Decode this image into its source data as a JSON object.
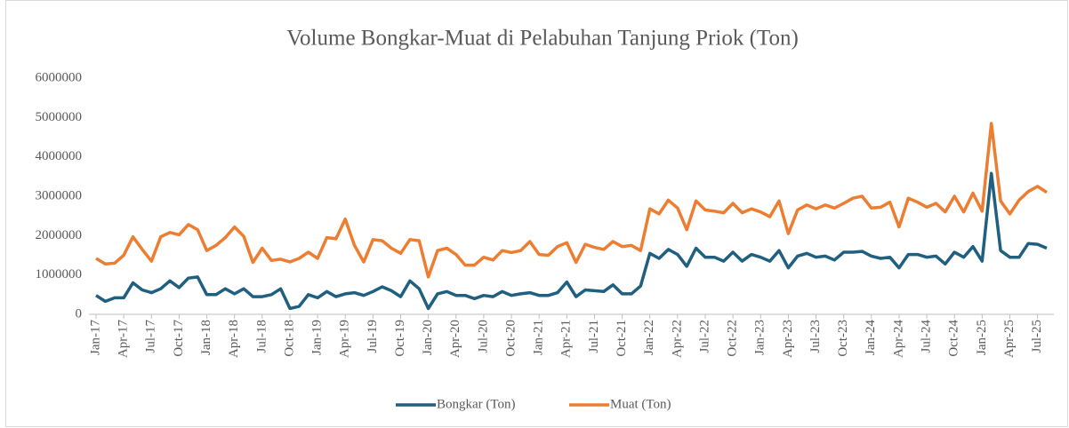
{
  "chart_data": {
    "type": "line",
    "title": "Volume Bongkar-Muat di Pelabuhan Tanjung Priok (Ton)",
    "categories": [
      "Jan-17",
      null,
      null,
      "Apr-17",
      null,
      null,
      "Jul-17",
      null,
      null,
      "Oct-17",
      null,
      null,
      "Jan-18",
      null,
      null,
      "Apr-18",
      null,
      null,
      "Jul-18",
      null,
      null,
      "Oct-18",
      null,
      null,
      "Jan-19",
      null,
      null,
      "Apr-19",
      null,
      null,
      "Jul-19",
      null,
      null,
      "Oct-19",
      null,
      null,
      "Jan-20",
      null,
      null,
      "Apr-20",
      null,
      null,
      "Jul-20",
      null,
      null,
      "Oct-20",
      null,
      null,
      "Jan-21",
      null,
      null,
      "Apr-21",
      null,
      null,
      "Jul-21",
      null,
      null,
      "Oct-21",
      null,
      null,
      "Jan-22",
      null,
      null,
      "Apr-22",
      null,
      null,
      "Jul-22",
      null,
      null,
      "Oct-22",
      null,
      null,
      "Jan-23",
      null,
      null,
      "Apr-23",
      null,
      null,
      "Jul-23",
      null,
      null,
      "Oct-23",
      null,
      null,
      "Jan-24",
      null,
      null,
      "Apr-24",
      null,
      null,
      "Jul-24",
      null,
      null,
      "Oct-24",
      null,
      null,
      "Jan-25",
      null,
      null,
      "Apr-25",
      null,
      null,
      "Jul-25",
      null
    ],
    "series": [
      {
        "name": "Bongkar (Ton)",
        "color": "#1f5f7f",
        "values": [
          480000,
          330000,
          420000,
          420000,
          800000,
          620000,
          550000,
          650000,
          850000,
          680000,
          920000,
          950000,
          500000,
          500000,
          650000,
          520000,
          650000,
          450000,
          450000,
          500000,
          650000,
          150000,
          200000,
          500000,
          420000,
          580000,
          450000,
          520000,
          550000,
          480000,
          580000,
          700000,
          600000,
          450000,
          850000,
          650000,
          150000,
          520000,
          580000,
          480000,
          480000,
          400000,
          480000,
          450000,
          580000,
          480000,
          520000,
          550000,
          480000,
          480000,
          550000,
          820000,
          450000,
          620000,
          600000,
          580000,
          750000,
          520000,
          520000,
          720000,
          1550000,
          1420000,
          1650000,
          1520000,
          1220000,
          1680000,
          1450000,
          1450000,
          1350000,
          1580000,
          1350000,
          1520000,
          1450000,
          1350000,
          1620000,
          1180000,
          1480000,
          1550000,
          1450000,
          1480000,
          1380000,
          1580000,
          1580000,
          1600000,
          1480000,
          1420000,
          1450000,
          1180000,
          1520000,
          1520000,
          1450000,
          1480000,
          1280000,
          1580000,
          1450000,
          1720000,
          1350000,
          3580000,
          1620000,
          1450000,
          1450000,
          1800000,
          1780000,
          1680000
        ]
      },
      {
        "name": "Muat (Ton)",
        "color": "#ed7d31",
        "values": [
          1420000,
          1280000,
          1300000,
          1500000,
          1970000,
          1650000,
          1350000,
          1970000,
          2080000,
          2020000,
          2280000,
          2150000,
          1620000,
          1750000,
          1950000,
          2220000,
          1980000,
          1320000,
          1680000,
          1370000,
          1400000,
          1330000,
          1420000,
          1580000,
          1420000,
          1950000,
          1920000,
          2420000,
          1750000,
          1330000,
          1900000,
          1870000,
          1680000,
          1550000,
          1900000,
          1870000,
          950000,
          1620000,
          1680000,
          1520000,
          1250000,
          1250000,
          1450000,
          1380000,
          1620000,
          1570000,
          1620000,
          1850000,
          1520000,
          1500000,
          1720000,
          1820000,
          1320000,
          1780000,
          1700000,
          1650000,
          1850000,
          1720000,
          1750000,
          1620000,
          2680000,
          2550000,
          2900000,
          2700000,
          2150000,
          2880000,
          2650000,
          2620000,
          2580000,
          2820000,
          2580000,
          2680000,
          2600000,
          2480000,
          2880000,
          2050000,
          2650000,
          2780000,
          2680000,
          2780000,
          2700000,
          2820000,
          2950000,
          3000000,
          2700000,
          2720000,
          2850000,
          2220000,
          2950000,
          2850000,
          2720000,
          2820000,
          2600000,
          3000000,
          2600000,
          3080000,
          2620000,
          4850000,
          2880000,
          2550000,
          2900000,
          3120000,
          3250000,
          3100000
        ]
      }
    ],
    "ylim": [
      0,
      6000000
    ],
    "yticks": [
      0,
      1000000,
      2000000,
      3000000,
      4000000,
      5000000,
      6000000
    ],
    "grid": false,
    "legend": "bottom"
  }
}
